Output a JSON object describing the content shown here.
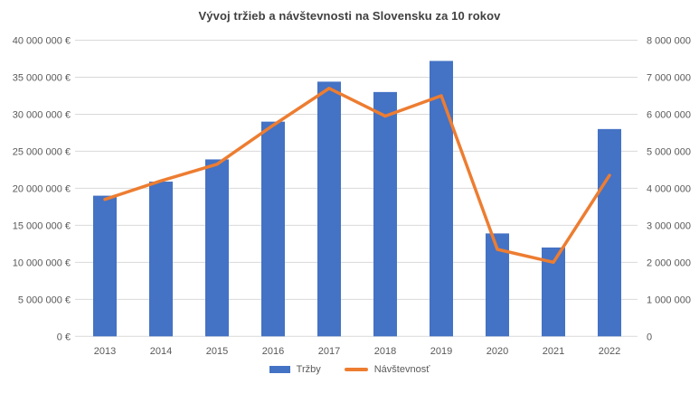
{
  "title": "Vývoj tržieb a návštevnosti na Slovensku za 10 rokov",
  "colors": {
    "bar": "#4472C4",
    "line": "#ED7D31",
    "grid": "#D9D9D9",
    "axis_text": "#595959",
    "title_text": "#404040",
    "background": "#FFFFFF"
  },
  "legend": {
    "items": [
      {
        "label": "Tržby",
        "swatch": "bar-swatch"
      },
      {
        "label": "Návštevnosť",
        "swatch": "line-swatch"
      }
    ]
  },
  "chart_data": {
    "type": "bar+line combo",
    "title": "Vývoj tržieb a návštevnosti na Slovensku za 10 rokov",
    "categories": [
      "2013",
      "2014",
      "2015",
      "2016",
      "2017",
      "2018",
      "2019",
      "2020",
      "2021",
      "2022"
    ],
    "series": [
      {
        "name": "Tržby",
        "type": "bar",
        "axis": "left",
        "unit": "€",
        "color": "#4472C4",
        "values": [
          19000000,
          20900000,
          23900000,
          29000000,
          34400000,
          33000000,
          37200000,
          13900000,
          12000000,
          28000000
        ]
      },
      {
        "name": "Návštevnosť",
        "type": "line",
        "axis": "right",
        "color": "#ED7D31",
        "values": [
          3700000,
          4200000,
          4650000,
          5700000,
          6700000,
          5950000,
          6500000,
          2350000,
          2000000,
          4350000
        ]
      }
    ],
    "left_axis": {
      "min": 0,
      "max": 40000000,
      "step": 5000000,
      "tick_labels_top_to_bottom": [
        "40 000 000 €",
        "35 000 000 €",
        "30 000 000 €",
        "25 000 000 €",
        "20 000 000 €",
        "15 000 000 €",
        "10 000 000 €",
        "5 000 000 €",
        "0 €"
      ]
    },
    "right_axis": {
      "min": 0,
      "max": 8000000,
      "step": 1000000,
      "tick_labels_top_to_bottom": [
        "8 000 000",
        "7 000 000",
        "6 000 000",
        "5 000 000",
        "4 000 000",
        "3 000 000",
        "2 000 000",
        "1 000 000",
        "0"
      ]
    },
    "grid": true,
    "legend_position": "bottom",
    "legend_entries": [
      "Tržby",
      "Návštevnosť"
    ]
  }
}
